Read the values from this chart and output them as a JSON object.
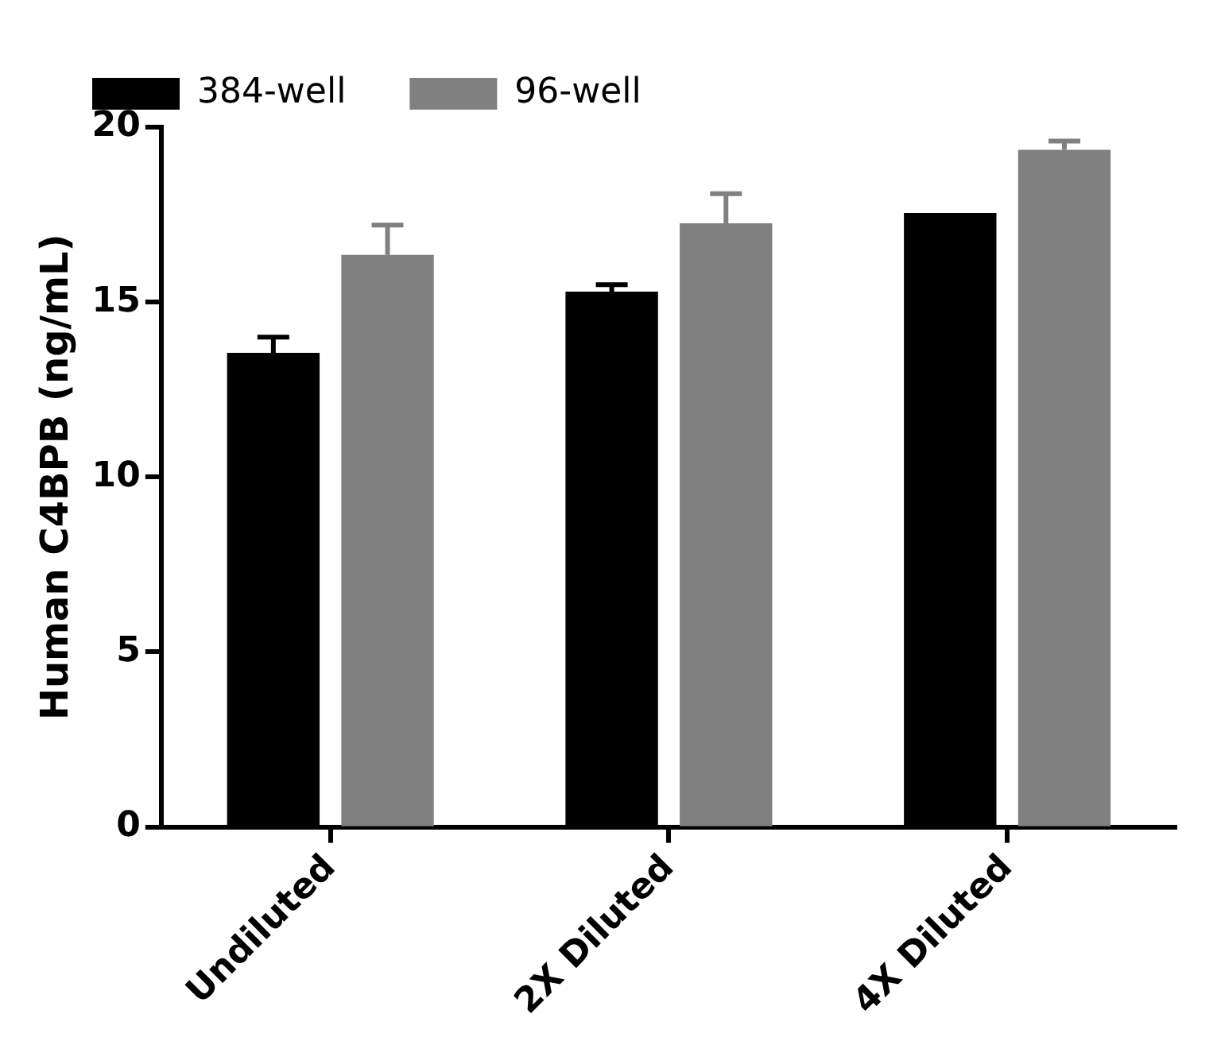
{
  "chart_data": {
    "type": "bar",
    "ylabel": "Human C4BPB (ng/mL)",
    "categories": [
      "Undiluted",
      "2X Diluted",
      "4X Diluted"
    ],
    "series": [
      {
        "name": "384-well",
        "color": "#000000",
        "values": [
          13.55,
          15.3,
          17.55
        ],
        "errors": [
          0.45,
          0.2,
          null
        ]
      },
      {
        "name": "96-well",
        "color": "#808080",
        "values": [
          16.35,
          17.25,
          19.35
        ],
        "errors": [
          0.85,
          0.85,
          0.25
        ]
      }
    ],
    "ylim": [
      0,
      20
    ],
    "yticks": [
      0,
      5,
      10,
      15,
      20
    ],
    "grid": false,
    "legend": "top left"
  }
}
